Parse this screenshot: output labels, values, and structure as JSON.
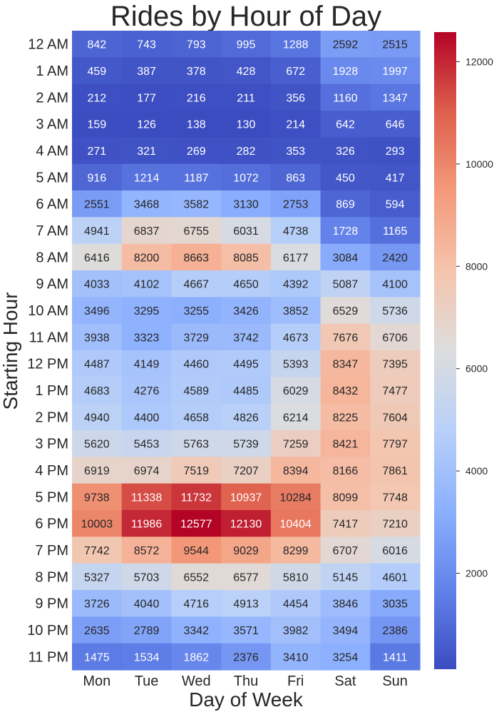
{
  "chart_data": {
    "type": "heatmap",
    "title": "Rides by Hour of Day",
    "xlabel": "Day of Week",
    "ylabel": "Starting Hour",
    "x_categories": [
      "Mon",
      "Tue",
      "Wed",
      "Thu",
      "Fri",
      "Sat",
      "Sun"
    ],
    "y_categories": [
      "12 AM",
      "1 AM",
      "2 AM",
      "3 AM",
      "4 AM",
      "5 AM",
      "6 AM",
      "7 AM",
      "8 AM",
      "9 AM",
      "10 AM",
      "11 AM",
      "12 PM",
      "1 PM",
      "2 PM",
      "3 PM",
      "4 PM",
      "5 PM",
      "6 PM",
      "7 PM",
      "8 PM",
      "9 PM",
      "10 PM",
      "11 PM"
    ],
    "values": [
      [
        842,
        743,
        793,
        995,
        1288,
        2592,
        2515
      ],
      [
        459,
        387,
        378,
        428,
        672,
        1928,
        1997
      ],
      [
        212,
        177,
        216,
        211,
        356,
        1160,
        1347
      ],
      [
        159,
        126,
        138,
        130,
        214,
        642,
        646
      ],
      [
        271,
        321,
        269,
        282,
        353,
        326,
        293
      ],
      [
        916,
        1214,
        1187,
        1072,
        863,
        450,
        417
      ],
      [
        2551,
        3468,
        3582,
        3130,
        2753,
        869,
        594
      ],
      [
        4941,
        6837,
        6755,
        6031,
        4738,
        1728,
        1165
      ],
      [
        6416,
        8200,
        8663,
        8085,
        6177,
        3084,
        2420
      ],
      [
        4033,
        4102,
        4667,
        4650,
        4392,
        5087,
        4100
      ],
      [
        3496,
        3295,
        3255,
        3426,
        3852,
        6529,
        5736
      ],
      [
        3938,
        3323,
        3729,
        3742,
        4673,
        7676,
        6706
      ],
      [
        4487,
        4149,
        4460,
        4495,
        5393,
        8347,
        7395
      ],
      [
        4683,
        4276,
        4589,
        4485,
        6029,
        8432,
        7477
      ],
      [
        4940,
        4400,
        4658,
        4826,
        6214,
        8225,
        7604
      ],
      [
        5620,
        5453,
        5763,
        5739,
        7259,
        8421,
        7797
      ],
      [
        6919,
        6974,
        7519,
        7207,
        8394,
        8166,
        7861
      ],
      [
        9738,
        11338,
        11732,
        10937,
        10284,
        8099,
        7748
      ],
      [
        10003,
        11986,
        12577,
        12130,
        10404,
        7417,
        7210
      ],
      [
        7742,
        8572,
        9544,
        9029,
        8299,
        6707,
        6016
      ],
      [
        5327,
        5703,
        6552,
        6577,
        5810,
        5145,
        4601
      ],
      [
        3726,
        4040,
        4716,
        4913,
        4454,
        3846,
        3035
      ],
      [
        2635,
        2789,
        3342,
        3571,
        3982,
        3494,
        2386
      ],
      [
        1475,
        1534,
        1862,
        2376,
        3410,
        3254,
        1411
      ]
    ],
    "colormap": "coolwarm",
    "vmin": 126,
    "vmax": 12577,
    "colorbar_ticks": [
      2000,
      4000,
      6000,
      8000,
      10000,
      12000
    ],
    "grid": false,
    "annotations": "cell values shown"
  }
}
